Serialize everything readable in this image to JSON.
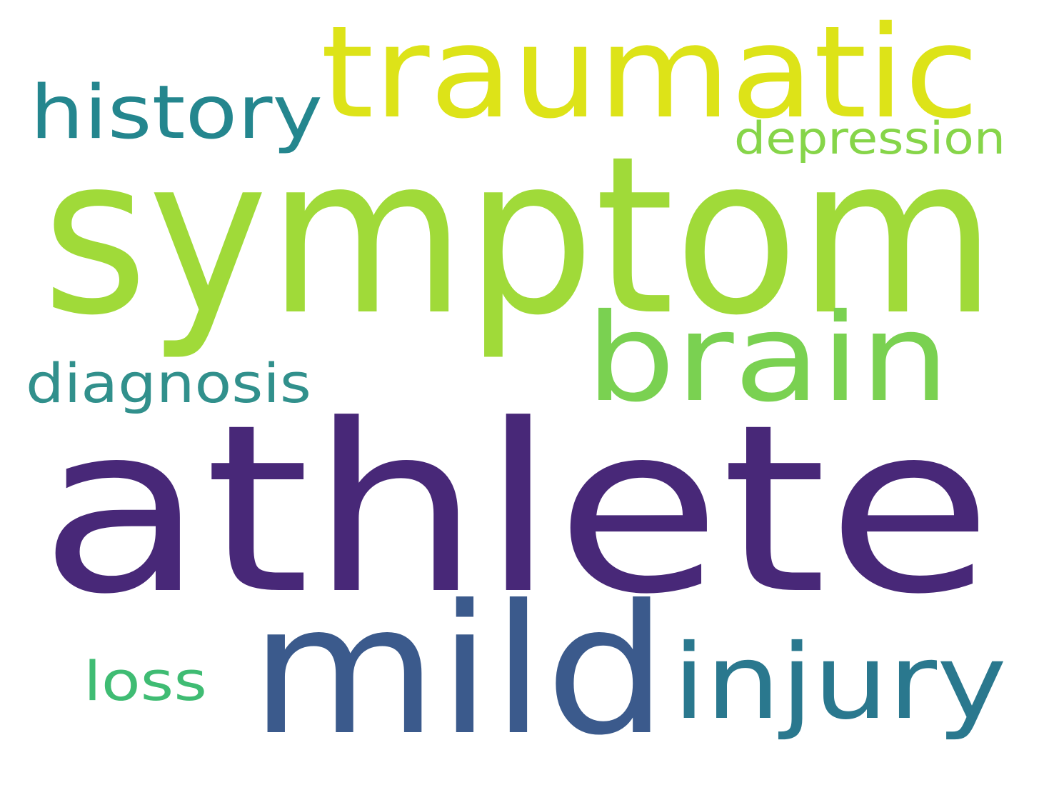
{
  "words": [
    {
      "id": "symptom",
      "text": "symptom",
      "color": "#a0da39"
    },
    {
      "id": "athlete",
      "text": "athlete",
      "color": "#482878"
    },
    {
      "id": "mild",
      "text": "mild",
      "color": "#3b5a8c"
    },
    {
      "id": "traumatic",
      "text": "traumatic",
      "color": "#dde318"
    },
    {
      "id": "brain",
      "text": "brain",
      "color": "#7ad151"
    },
    {
      "id": "injury",
      "text": "injury",
      "color": "#2a788e"
    },
    {
      "id": "history",
      "text": "history",
      "color": "#24868e"
    },
    {
      "id": "diagnosis",
      "text": "diagnosis",
      "color": "#31908c"
    },
    {
      "id": "depression",
      "text": "depression",
      "color": "#86d549"
    },
    {
      "id": "loss",
      "text": "loss",
      "color": "#3fbc73"
    }
  ]
}
